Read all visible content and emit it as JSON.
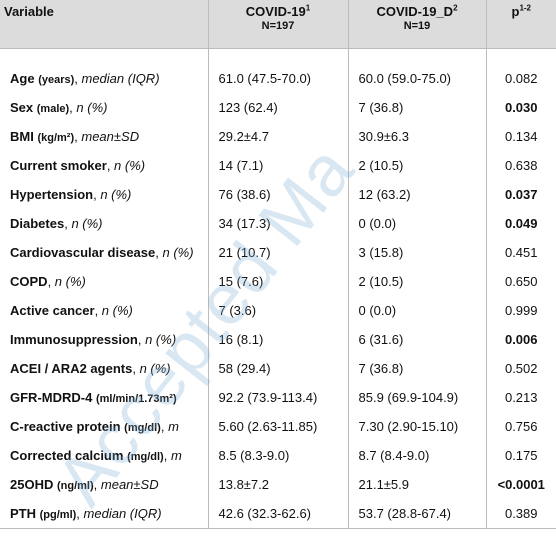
{
  "header": {
    "variable": "Variable",
    "group1_name": "COVID-19",
    "group1_sup": "1",
    "group1_n": "N=197",
    "group2_name": "COVID-19_D",
    "group2_sup": "2",
    "group2_n": "N=19",
    "p_label": "p",
    "p_sup": "1-2"
  },
  "rows": [
    {
      "name": "Age",
      "unit": "(years)",
      "stat": "median (IQR)",
      "g1": "61.0 (47.5-70.0)",
      "g2": "60.0 (59.0-75.0)",
      "p": "0.082",
      "bold": false
    },
    {
      "name": "Sex",
      "unit": "(male)",
      "stat": "n (%)",
      "g1": "123 (62.4)",
      "g2": "7 (36.8)",
      "p": "0.030",
      "bold": true
    },
    {
      "name": "BMI",
      "unit": "(kg/m²)",
      "stat": "mean±SD",
      "g1": "29.2±4.7",
      "g2": "30.9±6.3",
      "p": "0.134",
      "bold": false
    },
    {
      "name": "Current smoker",
      "unit": "",
      "stat": "n (%)",
      "g1": "14 (7.1)",
      "g2": "2 (10.5)",
      "p": "0.638",
      "bold": false
    },
    {
      "name": "Hypertension",
      "unit": "",
      "stat": "n (%)",
      "g1": "76 (38.6)",
      "g2": "12 (63.2)",
      "p": "0.037",
      "bold": true
    },
    {
      "name": "Diabetes",
      "unit": "",
      "stat": "n (%)",
      "g1": "34 (17.3)",
      "g2": "0 (0.0)",
      "p": "0.049",
      "bold": true
    },
    {
      "name": "Cardiovascular disease",
      "unit": "",
      "stat": "n (%)",
      "g1": "21 (10.7)",
      "g2": "3 (15.8)",
      "p": "0.451",
      "bold": false
    },
    {
      "name": "COPD",
      "unit": "",
      "stat": "n (%)",
      "g1": "15 (7.6)",
      "g2": "2 (10.5)",
      "p": "0.650",
      "bold": false
    },
    {
      "name": "Active cancer",
      "unit": "",
      "stat": "n (%)",
      "g1": "7 (3.6)",
      "g2": "0 (0.0)",
      "p": "0.999",
      "bold": false
    },
    {
      "name": "Immunosuppression",
      "unit": "",
      "stat": "n (%)",
      "g1": "16 (8.1)",
      "g2": "6 (31.6)",
      "p": "0.006",
      "bold": true
    },
    {
      "name": "ACEI / ARA2 agents",
      "unit": "",
      "stat": "n (%)",
      "g1": "58 (29.4)",
      "g2": "7 (36.8)",
      "p": "0.502",
      "bold": false
    },
    {
      "name": "GFR-MDRD-4",
      "unit": "(ml/min/1.73m²)",
      "stat": "",
      "g1": "92.2 (73.9-113.4)",
      "g2": "85.9 (69.9-104.9)",
      "p": "0.213",
      "bold": false
    },
    {
      "name": "C-reactive protein",
      "unit": "(mg/dl)",
      "stat": "m",
      "g1": "5.60 (2.63-11.85)",
      "g2": "7.30 (2.90-15.10)",
      "p": "0.756",
      "bold": false
    },
    {
      "name": "Corrected calcium",
      "unit": "(mg/dl)",
      "stat": "m",
      "g1": "8.5 (8.3-9.0)",
      "g2": "8.7 (8.4-9.0)",
      "p": "0.175",
      "bold": false
    },
    {
      "name": "25OHD",
      "unit": "(ng/ml)",
      "stat": "mean±SD",
      "g1": "13.8±7.2",
      "g2": "21.1±5.9",
      "p": "<0.0001",
      "bold": true
    },
    {
      "name": "PTH",
      "unit": "(pg/ml)",
      "stat": "median (IQR)",
      "g1": "42.6 (32.3-62.6)",
      "g2": "53.7 (28.8-67.4)",
      "p": "0.389",
      "bold": false
    }
  ],
  "watermark": "Accepted Ma"
}
